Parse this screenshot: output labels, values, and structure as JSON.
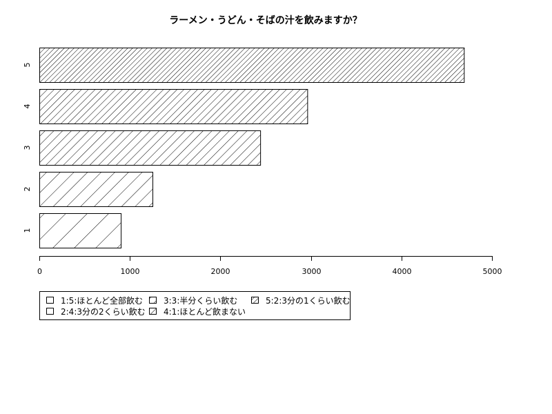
{
  "chart_data": {
    "type": "bar",
    "orientation": "horizontal",
    "title": "ラーメン・うどん・そばの汁を飲みますか？",
    "xlabel": "",
    "ylabel": "",
    "categories": [
      "1",
      "2",
      "3",
      "4",
      "5"
    ],
    "values": [
      900,
      1250,
      2440,
      2960,
      4690
    ],
    "xlim": [
      0,
      5000
    ],
    "x_ticks": [
      0,
      1000,
      2000,
      3000,
      4000,
      5000
    ],
    "grid": false,
    "legend_position": "bottom-left",
    "legend": [
      {
        "label": "1:5:ほとんど全部飲む"
      },
      {
        "label": "2:4:3分の2くらい飲む"
      },
      {
        "label": "3:3:半分くらい飲む"
      },
      {
        "label": "4:1:ほとんど飲まない"
      },
      {
        "label": "5:2:3分の1くらい飲む"
      }
    ],
    "colors": {
      "bar_fill": "#ffffff",
      "stroke": "#000000"
    }
  }
}
